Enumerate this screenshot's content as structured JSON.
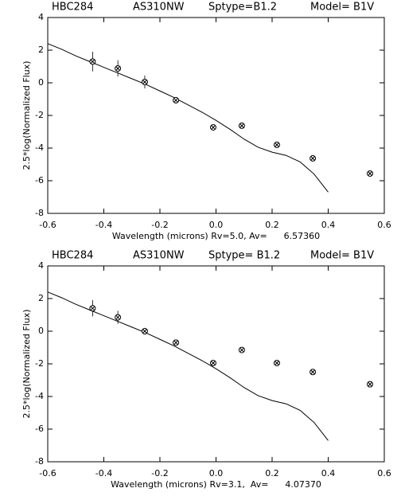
{
  "chart_data": [
    {
      "type": "scatter",
      "header": [
        "HBC284",
        "AS310NW",
        "Sptype=B1.2",
        "Model= B1V"
      ],
      "xlabel": "Wavelength (microns) Rv=5.0, Av=      6.57360",
      "ylabel": "2.5*log(Normalized Flux)",
      "xlim": [
        -0.6,
        0.6
      ],
      "ylim": [
        -8,
        4
      ],
      "xticks": [
        -0.6,
        -0.4,
        -0.2,
        {
          "value": 0,
          "label": "0.0"
        },
        0.2,
        0.4,
        0.6
      ],
      "yticks": [
        -8,
        -6,
        -4,
        -2,
        0,
        2,
        4
      ],
      "color": "#000000",
      "model": {
        "x": [
          -0.6,
          -0.55,
          -0.5,
          -0.45,
          -0.4,
          -0.35,
          -0.3,
          -0.25,
          -0.2,
          -0.15,
          -0.1,
          -0.05,
          0.0,
          0.05,
          0.1,
          0.15,
          0.2,
          0.25,
          0.3,
          0.35,
          0.4
        ],
        "values": [
          2.4,
          2.05,
          1.65,
          1.3,
          0.95,
          0.6,
          0.25,
          -0.1,
          -0.5,
          -0.9,
          -1.35,
          -1.8,
          -2.3,
          -2.85,
          -3.45,
          -3.95,
          -4.25,
          -4.45,
          -4.85,
          -5.6,
          -6.7
        ]
      },
      "points": {
        "x": [
          -0.44,
          -0.35,
          -0.254,
          -0.143,
          -0.01,
          0.092,
          0.217,
          0.345,
          0.549
        ],
        "values": [
          1.3,
          0.88,
          0.05,
          -1.07,
          -2.73,
          -2.63,
          -3.8,
          -4.63,
          -5.56
        ],
        "errors": [
          0.6,
          0.5,
          0.4,
          0.2,
          null,
          null,
          null,
          null,
          null
        ]
      }
    },
    {
      "type": "scatter",
      "header": [
        "HBC284",
        "AS310NW",
        "Sptype= B1.2",
        "Model= B1V"
      ],
      "xlabel": "Wavelength (microns) Rv=3.1,  Av=      4.07370",
      "ylabel": "2.5*log(Normalized Flux)",
      "xlim": [
        -0.6,
        0.6
      ],
      "ylim": [
        -8,
        4
      ],
      "xticks": [
        -0.6,
        -0.4,
        -0.2,
        {
          "value": 0,
          "label": "0.0"
        },
        0.2,
        0.4,
        0.6
      ],
      "yticks": [
        -8,
        -6,
        -4,
        -2,
        0,
        2,
        4
      ],
      "color": "#000000",
      "model": {
        "x": [
          -0.6,
          -0.55,
          -0.5,
          -0.45,
          -0.4,
          -0.35,
          -0.3,
          -0.25,
          -0.2,
          -0.15,
          -0.1,
          -0.05,
          0.0,
          0.05,
          0.1,
          0.15,
          0.2,
          0.25,
          0.3,
          0.35,
          0.4
        ],
        "values": [
          2.4,
          2.05,
          1.65,
          1.3,
          0.95,
          0.6,
          0.25,
          -0.1,
          -0.5,
          -0.9,
          -1.35,
          -1.8,
          -2.3,
          -2.85,
          -3.45,
          -3.95,
          -4.25,
          -4.45,
          -4.85,
          -5.6,
          -6.7
        ]
      },
      "points": {
        "x": [
          -0.44,
          -0.35,
          -0.254,
          -0.143,
          -0.01,
          0.092,
          0.217,
          0.345,
          0.549
        ],
        "values": [
          1.4,
          0.85,
          0.0,
          -0.7,
          -1.95,
          -1.15,
          -1.95,
          -2.5,
          -3.25
        ],
        "errors": [
          0.5,
          0.4,
          0.2,
          null,
          null,
          null,
          null,
          null,
          null
        ]
      }
    }
  ]
}
